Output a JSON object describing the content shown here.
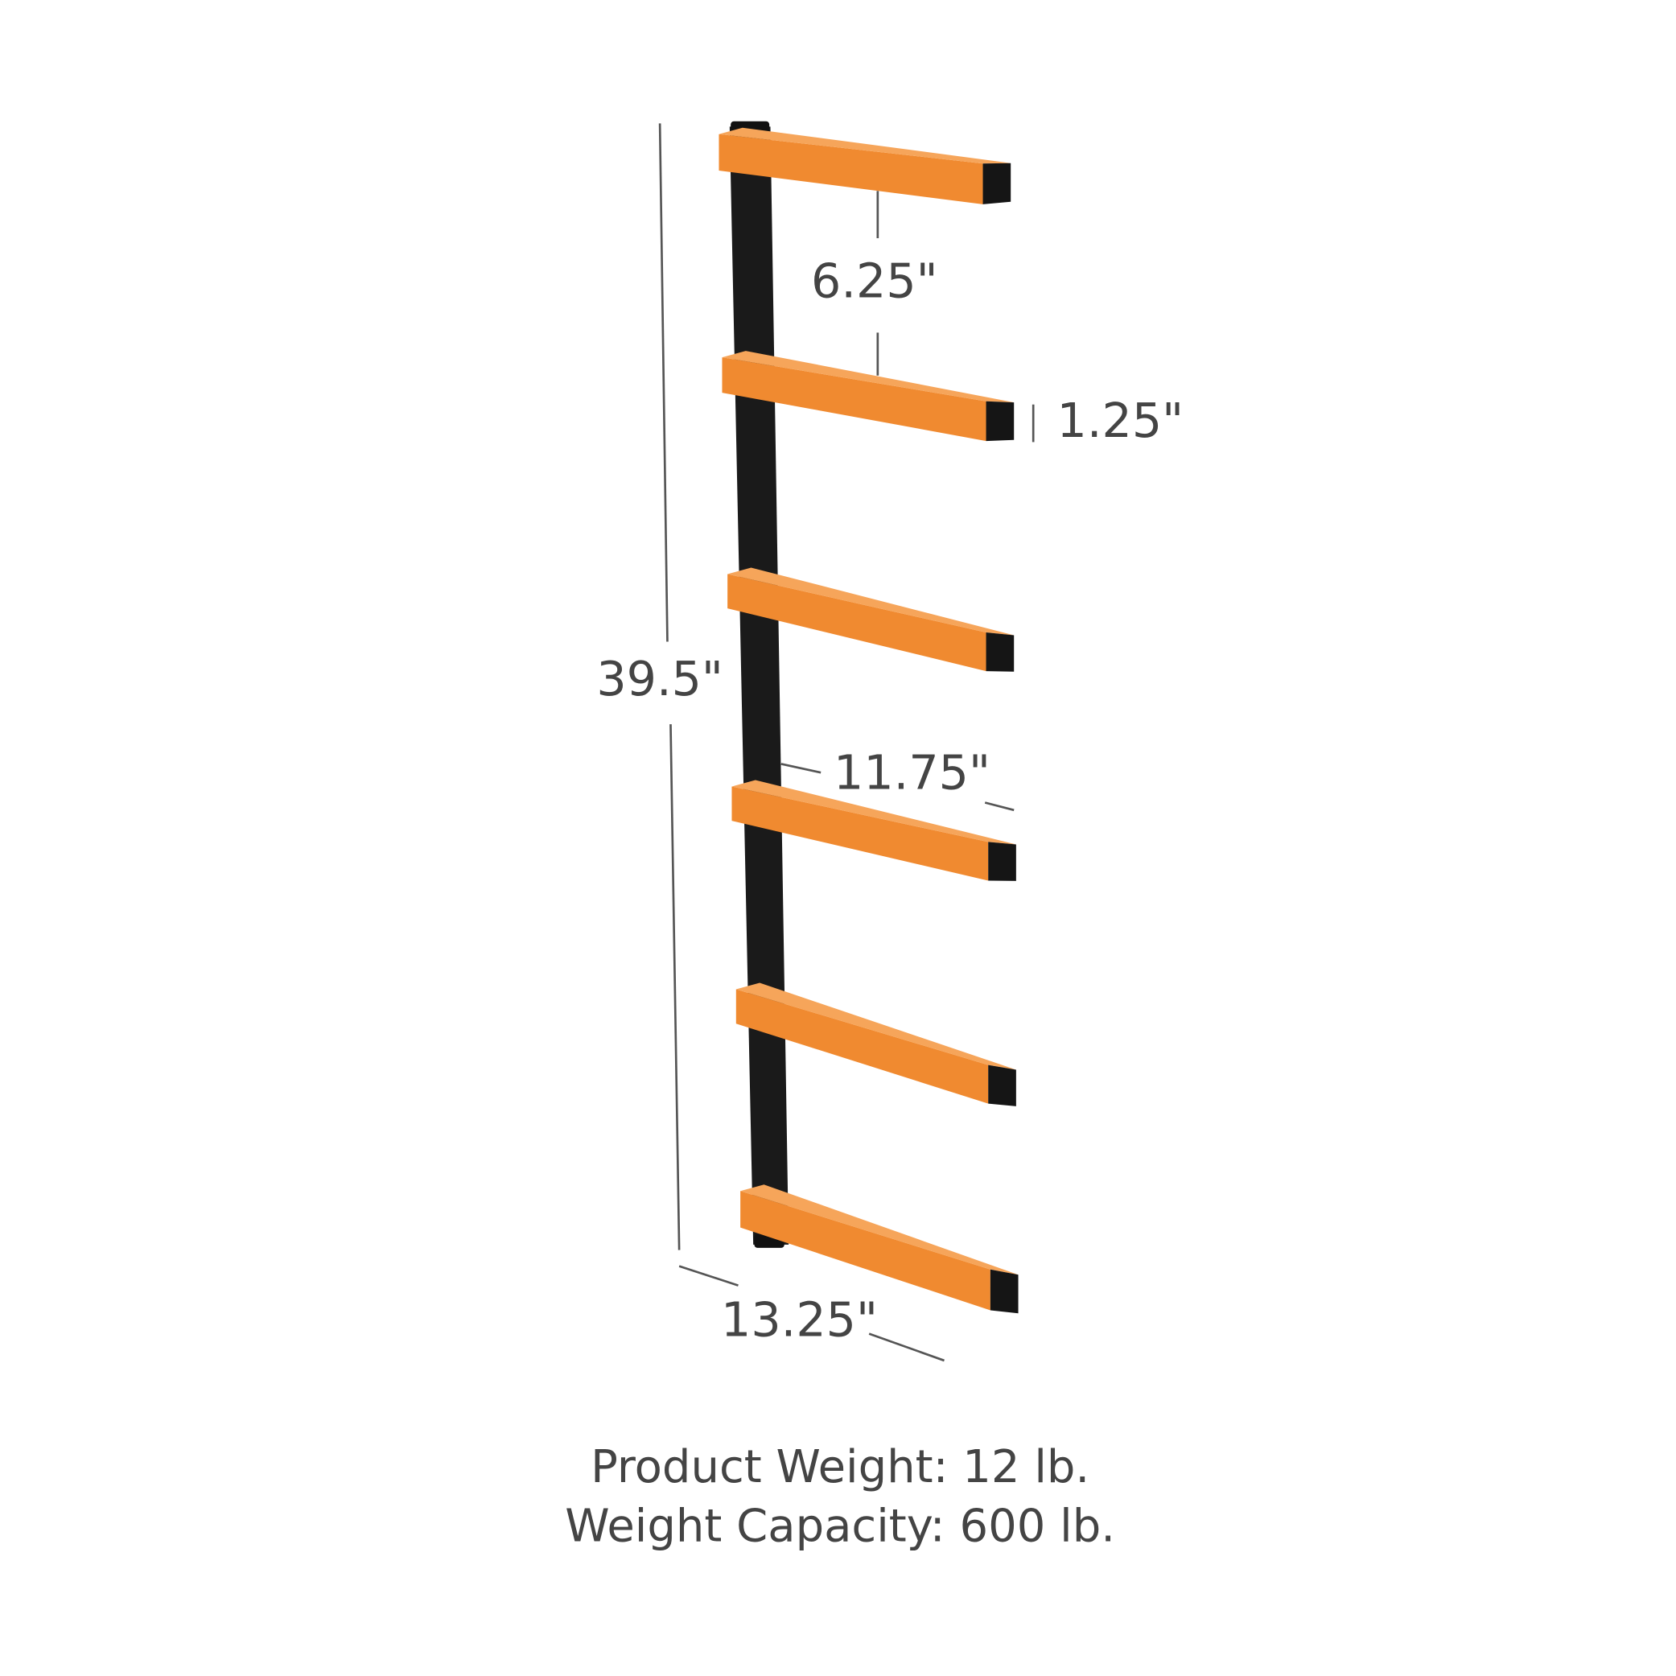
{
  "dimensions": {
    "shelf_spacing": "6.25\"",
    "arm_thickness": "1.25\"",
    "total_height": "39.5\"",
    "arm_length": "11.75\"",
    "overall_depth": "13.25\""
  },
  "specs": [
    "Product Weight: 12 lb.",
    "Weight Capacity: 600 lb."
  ]
}
